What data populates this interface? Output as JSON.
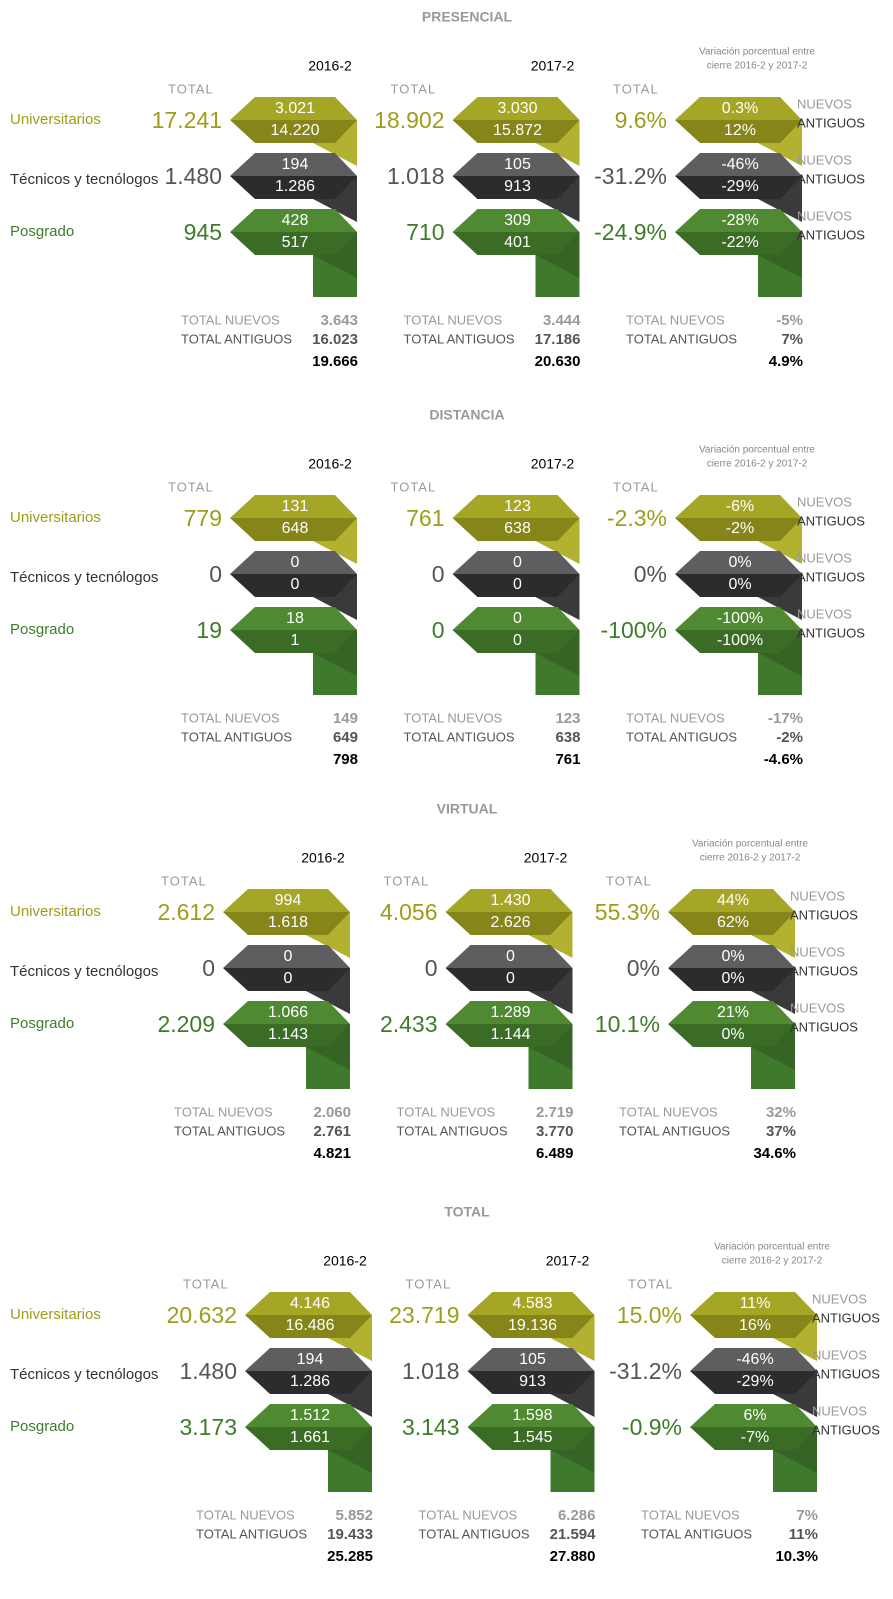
{
  "row_labels": [
    "Universitarios",
    "Técnicos y tecnólogos",
    "Posgrado"
  ],
  "total_label": "TOTAL",
  "nuevos_label": "NUEVOS",
  "antiguos_label": "ANTIGUOS",
  "total_nuevos_label": "TOTAL NUEVOS",
  "total_antiguos_label": "TOTAL ANTIGUOS",
  "variation_header": [
    "Variación porcentual entre",
    "cierre 2016-2 y 2017-2"
  ],
  "sections": [
    {
      "title": "PRESENCIAL",
      "panels": [
        {
          "label": "2016-2",
          "rows": [
            {
              "total": "17.241",
              "nuevos": "3.021",
              "antiguos": "14.220"
            },
            {
              "total": "1.480",
              "nuevos": "194",
              "antiguos": "1.286"
            },
            {
              "total": "945",
              "nuevos": "428",
              "antiguos": "517"
            }
          ],
          "summary": {
            "nuevos": "3.643",
            "antiguos": "16.023",
            "total": "19.666"
          }
        },
        {
          "label": "2017-2",
          "rows": [
            {
              "total": "18.902",
              "nuevos": "3.030",
              "antiguos": "15.872"
            },
            {
              "total": "1.018",
              "nuevos": "105",
              "antiguos": "913"
            },
            {
              "total": "710",
              "nuevos": "309",
              "antiguos": "401"
            }
          ],
          "summary": {
            "nuevos": "3.444",
            "antiguos": "17.186",
            "total": "20.630"
          }
        },
        {
          "rows": [
            {
              "total": "9.6%",
              "nuevos": "0.3%",
              "antiguos": "12%"
            },
            {
              "total": "-31.2%",
              "nuevos": "-46%",
              "antiguos": "-29%"
            },
            {
              "total": "-24.9%",
              "nuevos": "-28%",
              "antiguos": "-22%"
            }
          ],
          "summary": {
            "nuevos": "-5%",
            "antiguos": "7%",
            "total": "4.9%"
          }
        }
      ]
    },
    {
      "title": "DISTANCIA",
      "panels": [
        {
          "label": "2016-2",
          "rows": [
            {
              "total": "779",
              "nuevos": "131",
              "antiguos": "648"
            },
            {
              "total": "0",
              "nuevos": "0",
              "antiguos": "0"
            },
            {
              "total": "19",
              "nuevos": "18",
              "antiguos": "1"
            }
          ],
          "summary": {
            "nuevos": "149",
            "antiguos": "649",
            "total": "798"
          }
        },
        {
          "label": "2017-2",
          "rows": [
            {
              "total": "761",
              "nuevos": "123",
              "antiguos": "638"
            },
            {
              "total": "0",
              "nuevos": "0",
              "antiguos": "0"
            },
            {
              "total": "0",
              "nuevos": "0",
              "antiguos": "0"
            }
          ],
          "summary": {
            "nuevos": "123",
            "antiguos": "638",
            "total": "761"
          }
        },
        {
          "rows": [
            {
              "total": "-2.3%",
              "nuevos": "-6%",
              "antiguos": "-2%"
            },
            {
              "total": "0%",
              "nuevos": "0%",
              "antiguos": "0%"
            },
            {
              "total": "-100%",
              "nuevos": "-100%",
              "antiguos": "-100%"
            }
          ],
          "summary": {
            "nuevos": "-17%",
            "antiguos": "-2%",
            "total": "-4.6%"
          }
        }
      ]
    },
    {
      "title": "VIRTUAL",
      "panels": [
        {
          "label": "2016-2",
          "rows": [
            {
              "total": "2.612",
              "nuevos": "994",
              "antiguos": "1.618"
            },
            {
              "total": "0",
              "nuevos": "0",
              "antiguos": "0"
            },
            {
              "total": "2.209",
              "nuevos": "1.066",
              "antiguos": "1.143"
            }
          ],
          "summary": {
            "nuevos": "2.060",
            "antiguos": "2.761",
            "total": "4.821"
          }
        },
        {
          "label": "2017-2",
          "rows": [
            {
              "total": "4.056",
              "nuevos": "1.430",
              "antiguos": "2.626"
            },
            {
              "total": "0",
              "nuevos": "0",
              "antiguos": "0"
            },
            {
              "total": "2.433",
              "nuevos": "1.289",
              "antiguos": "1.144"
            }
          ],
          "summary": {
            "nuevos": "2.719",
            "antiguos": "3.770",
            "total": "6.489"
          }
        },
        {
          "rows": [
            {
              "total": "55.3%",
              "nuevos": "44%",
              "antiguos": "62%"
            },
            {
              "total": "0%",
              "nuevos": "0%",
              "antiguos": "0%"
            },
            {
              "total": "10.1%",
              "nuevos": "21%",
              "antiguos": "0%"
            }
          ],
          "summary": {
            "nuevos": "32%",
            "antiguos": "37%",
            "total": "34.6%"
          }
        }
      ]
    },
    {
      "title": "TOTAL",
      "panels": [
        {
          "label": "2016-2",
          "rows": [
            {
              "total": "20.632",
              "nuevos": "4.146",
              "antiguos": "16.486"
            },
            {
              "total": "1.480",
              "nuevos": "194",
              "antiguos": "1.286"
            },
            {
              "total": "3.173",
              "nuevos": "1.512",
              "antiguos": "1.661"
            }
          ],
          "summary": {
            "nuevos": "5.852",
            "antiguos": "19.433",
            "total": "25.285"
          }
        },
        {
          "label": "2017-2",
          "rows": [
            {
              "total": "23.719",
              "nuevos": "4.583",
              "antiguos": "19.136"
            },
            {
              "total": "1.018",
              "nuevos": "105",
              "antiguos": "913"
            },
            {
              "total": "3.143",
              "nuevos": "1.598",
              "antiguos": "1.545"
            }
          ],
          "summary": {
            "nuevos": "6.286",
            "antiguos": "21.594",
            "total": "27.880"
          }
        },
        {
          "rows": [
            {
              "total": "15.0%",
              "nuevos": "11%",
              "antiguos": "16%"
            },
            {
              "total": "-31.2%",
              "nuevos": "-46%",
              "antiguos": "-29%"
            },
            {
              "total": "-0.9%",
              "nuevos": "6%",
              "antiguos": "-7%"
            }
          ],
          "summary": {
            "nuevos": "7%",
            "antiguos": "11%",
            "total": "10.3%"
          }
        }
      ]
    }
  ]
}
